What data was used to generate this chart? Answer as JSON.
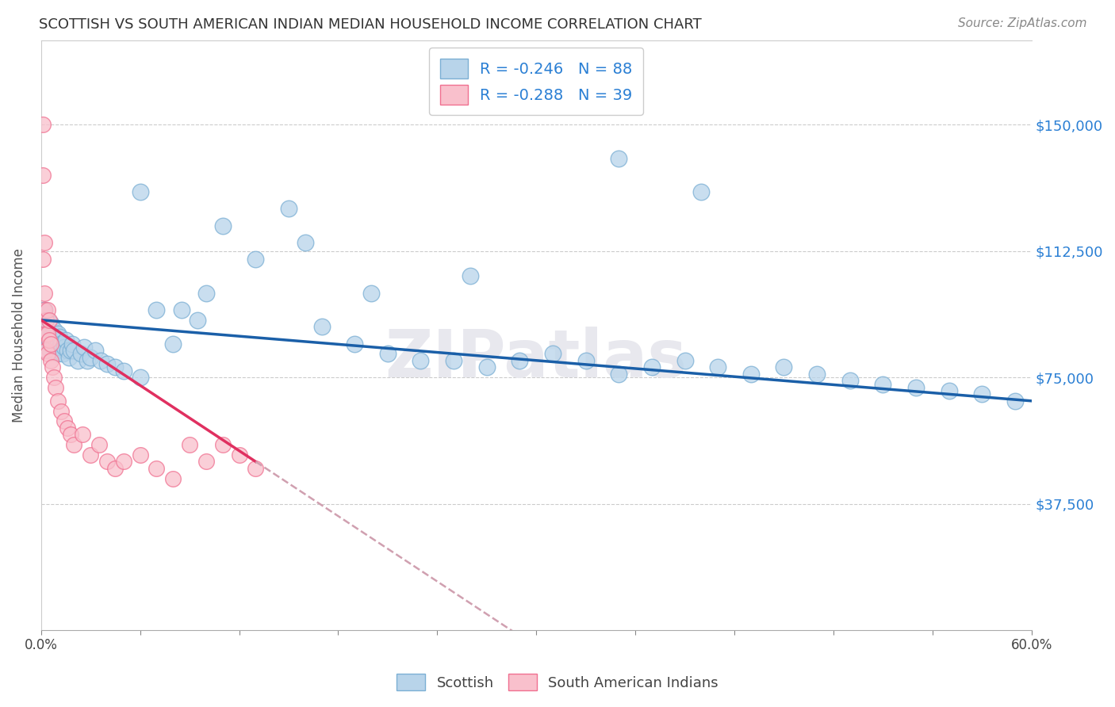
{
  "title": "SCOTTISH VS SOUTH AMERICAN INDIAN MEDIAN HOUSEHOLD INCOME CORRELATION CHART",
  "source": "Source: ZipAtlas.com",
  "ylabel": "Median Household Income",
  "y_ticks": [
    37500,
    75000,
    112500,
    150000
  ],
  "y_tick_labels": [
    "$37,500",
    "$75,000",
    "$112,500",
    "$150,000"
  ],
  "x_range": [
    0.0,
    0.6
  ],
  "y_range": [
    0,
    175000
  ],
  "color_scottish_fill": "#b8d4ea",
  "color_scottish_edge": "#7bafd4",
  "color_south_american_fill": "#f9c0cc",
  "color_south_american_edge": "#f07090",
  "color_trendline_scottish": "#1a5fa8",
  "color_trendline_south_american": "#e03060",
  "color_trendline_extended": "#d0a0b0",
  "background_color": "#ffffff",
  "grid_color": "#cccccc",
  "watermark_color": "#e8e8ee",
  "scottish_x": [
    0.001,
    0.001,
    0.002,
    0.002,
    0.002,
    0.003,
    0.003,
    0.003,
    0.003,
    0.004,
    0.004,
    0.004,
    0.004,
    0.005,
    0.005,
    0.005,
    0.006,
    0.006,
    0.006,
    0.007,
    0.007,
    0.007,
    0.008,
    0.008,
    0.008,
    0.009,
    0.009,
    0.01,
    0.01,
    0.01,
    0.011,
    0.011,
    0.012,
    0.013,
    0.014,
    0.015,
    0.016,
    0.017,
    0.018,
    0.019,
    0.02,
    0.022,
    0.024,
    0.026,
    0.028,
    0.03,
    0.033,
    0.036,
    0.04,
    0.045,
    0.05,
    0.06,
    0.07,
    0.085,
    0.095,
    0.11,
    0.13,
    0.15,
    0.17,
    0.19,
    0.21,
    0.23,
    0.25,
    0.27,
    0.29,
    0.31,
    0.33,
    0.35,
    0.37,
    0.39,
    0.41,
    0.43,
    0.45,
    0.47,
    0.49,
    0.51,
    0.53,
    0.55,
    0.57,
    0.59,
    0.35,
    0.4,
    0.26,
    0.2,
    0.16,
    0.1,
    0.08,
    0.06
  ],
  "scottish_y": [
    92000,
    88000,
    85000,
    90000,
    95000,
    87000,
    91000,
    83000,
    89000,
    86000,
    92000,
    88000,
    84000,
    90000,
    86000,
    88000,
    85000,
    91000,
    87000,
    86000,
    88000,
    84000,
    87000,
    85000,
    89000,
    83000,
    86000,
    88000,
    85000,
    82000,
    84000,
    87000,
    85000,
    82000,
    84000,
    86000,
    83000,
    81000,
    83000,
    85000,
    83000,
    80000,
    82000,
    84000,
    80000,
    81000,
    83000,
    80000,
    79000,
    78000,
    77000,
    130000,
    95000,
    95000,
    92000,
    120000,
    110000,
    125000,
    90000,
    85000,
    82000,
    80000,
    80000,
    78000,
    80000,
    82000,
    80000,
    76000,
    78000,
    80000,
    78000,
    76000,
    78000,
    76000,
    74000,
    73000,
    72000,
    71000,
    70000,
    68000,
    140000,
    130000,
    105000,
    100000,
    115000,
    100000,
    85000,
    75000
  ],
  "south_american_x": [
    0.001,
    0.001,
    0.001,
    0.002,
    0.002,
    0.002,
    0.003,
    0.003,
    0.003,
    0.004,
    0.004,
    0.004,
    0.005,
    0.005,
    0.006,
    0.006,
    0.007,
    0.008,
    0.009,
    0.01,
    0.012,
    0.014,
    0.016,
    0.018,
    0.02,
    0.025,
    0.03,
    0.035,
    0.04,
    0.045,
    0.05,
    0.06,
    0.07,
    0.08,
    0.09,
    0.1,
    0.11,
    0.12,
    0.13
  ],
  "south_american_y": [
    150000,
    135000,
    110000,
    115000,
    100000,
    95000,
    92000,
    88000,
    83000,
    95000,
    88000,
    82000,
    92000,
    86000,
    85000,
    80000,
    78000,
    75000,
    72000,
    68000,
    65000,
    62000,
    60000,
    58000,
    55000,
    58000,
    52000,
    55000,
    50000,
    48000,
    50000,
    52000,
    48000,
    45000,
    55000,
    50000,
    55000,
    52000,
    48000
  ],
  "x_ticks_minor": [
    0.06,
    0.12,
    0.18,
    0.24,
    0.3,
    0.36,
    0.42,
    0.48,
    0.54
  ],
  "legend_labels": [
    "R = -0.246   N = 88",
    "R = -0.288   N = 39"
  ]
}
